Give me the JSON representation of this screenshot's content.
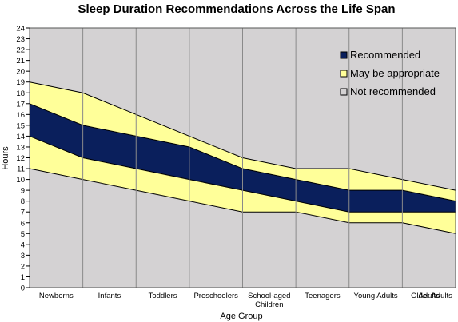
{
  "chart_data": {
    "type": "area",
    "title": "Sleep Duration Recommendations Across the Life Span",
    "xlabel": "Age Group",
    "ylabel": "Hours",
    "ylim": [
      0,
      24
    ],
    "yticks": [
      0,
      1,
      2,
      3,
      4,
      5,
      6,
      7,
      8,
      9,
      10,
      11,
      12,
      13,
      14,
      15,
      16,
      17,
      18,
      19,
      20,
      21,
      22,
      23,
      24
    ],
    "categories": [
      "Newborns",
      "Infants",
      "Toddlers",
      "Preschoolers",
      "School-aged Children",
      "Teenagers",
      "Young Adults",
      "Adults",
      "Older Adults"
    ],
    "category_lines": [
      [
        "Newborns"
      ],
      [
        "Infants"
      ],
      [
        "Toddlers"
      ],
      [
        "Preschoolers"
      ],
      [
        "School-aged",
        "Children"
      ],
      [
        "Teenagers"
      ],
      [
        "Young Adults"
      ],
      [
        "Adults"
      ],
      [
        "Older Adults"
      ]
    ],
    "boundaries": {
      "may_be_appropriate_low": [
        11,
        10,
        9,
        8,
        7,
        7,
        6,
        6,
        5
      ],
      "recommended_low": [
        14,
        12,
        11,
        10,
        9,
        8,
        7,
        7,
        7
      ],
      "recommended_high": [
        17,
        15,
        14,
        13,
        11,
        10,
        9,
        9,
        8
      ],
      "may_be_appropriate_high": [
        19,
        18,
        16,
        14,
        12,
        11,
        11,
        10,
        9
      ]
    },
    "series": [
      {
        "name": "Recommended",
        "color": "#0a1f5c"
      },
      {
        "name": "May be appropriate",
        "color": "#ffff99"
      },
      {
        "name": "Not recommended",
        "color": "#d4d2d3"
      }
    ],
    "legend_position": "top-right",
    "grid": "vertical category lines"
  }
}
